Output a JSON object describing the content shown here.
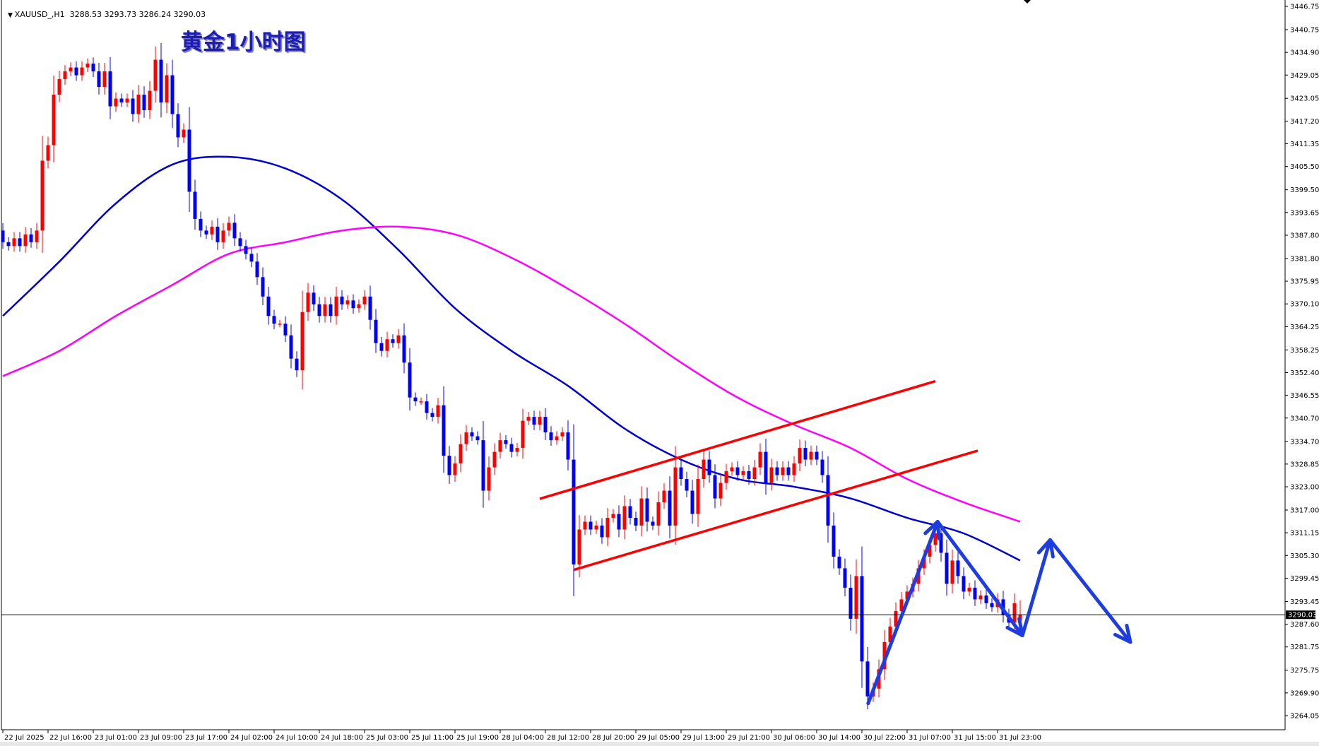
{
  "header": {
    "symbol_line": "XAUUSD_,H1  3288.53 3293.73 3286.24 3290.03",
    "chart_title": "黄金1小时图"
  },
  "chart_data": {
    "type": "candlestick",
    "symbol": "XAUUSD_",
    "timeframe": "H1",
    "last_bar": {
      "open": 3288.53,
      "high": 3293.73,
      "low": 3286.24,
      "close": 3290.03
    },
    "current_price": 3290.03,
    "colors": {
      "up": "#ff0000",
      "down": "#0000ff",
      "ma_fast": "#0000cc",
      "ma_slow": "#ff00ff",
      "channel": "#ff0000",
      "arrows": "#1d3de0",
      "price_line": "#000000"
    },
    "ylim": [
      3264.05,
      3446.75
    ],
    "y_ticks": [
      "3446.75",
      "3440.75",
      "3434.90",
      "3429.05",
      "3423.05",
      "3417.20",
      "3411.35",
      "3405.50",
      "3399.50",
      "3393.65",
      "3387.80",
      "3381.80",
      "3375.95",
      "3370.10",
      "3364.25",
      "3358.25",
      "3352.40",
      "3346.55",
      "3340.70",
      "3334.70",
      "3328.85",
      "3323.00",
      "3317.00",
      "3311.15",
      "3305.30",
      "3299.45",
      "3293.45",
      "3287.60",
      "3281.75",
      "3275.75",
      "3269.90",
      "3264.05"
    ],
    "x_ticks": [
      "22 Jul 2025",
      "22 Jul 16:00",
      "23 Jul 01:00",
      "23 Jul 09:00",
      "23 Jul 17:00",
      "24 Jul 02:00",
      "24 Jul 10:00",
      "24 Jul 18:00",
      "25 Jul 03:00",
      "25 Jul 11:00",
      "25 Jul 19:00",
      "28 Jul 04:00",
      "28 Jul 12:00",
      "28 Jul 20:00",
      "29 Jul 05:00",
      "29 Jul 13:00",
      "29 Jul 21:00",
      "30 Jul 06:00",
      "30 Jul 14:00",
      "30 Jul 22:00",
      "31 Jul 07:00",
      "31 Jul 15:00",
      "31 Jul 23:00"
    ],
    "first_open": 3389,
    "closes": [
      3386,
      3385,
      3387,
      3385,
      3388,
      3386,
      3389,
      3407,
      3411,
      3424,
      3428,
      3430,
      3431,
      3429,
      3431,
      3432,
      3430,
      3426,
      3430,
      3421,
      3423,
      3422,
      3423,
      3419,
      3424,
      3420,
      3425,
      3433,
      3422,
      3429,
      3419,
      3413,
      3415,
      3399,
      3392,
      3389,
      3388,
      3390,
      3386,
      3389,
      3391,
      3387,
      3385,
      3383,
      3381,
      3377,
      3372,
      3367,
      3365,
      3365,
      3362,
      3356,
      3353,
      3368,
      3373,
      3370,
      3367,
      3370,
      3367,
      3372,
      3370,
      3371,
      3369,
      3370,
      3372,
      3366,
      3360,
      3358,
      3361,
      3360,
      3362,
      3355,
      3346,
      3345,
      3345,
      3342,
      3341,
      3344,
      3331,
      3326,
      3329,
      3334,
      3337,
      3336,
      3335,
      3322,
      3328,
      3332,
      3335,
      3334,
      3332,
      3333,
      3340,
      3341,
      3339,
      3341,
      3337,
      3335,
      3336,
      3337,
      3330,
      3303,
      3312,
      3314,
      3312,
      3313,
      3310,
      3315,
      3316,
      3312,
      3318,
      3315,
      3313,
      3320,
      3314,
      3313,
      3319,
      3322,
      3313,
      3328,
      3325,
      3322,
      3316,
      3325,
      3330,
      3326,
      3320,
      3324,
      3327,
      3328,
      3326,
      3327,
      3325,
      3328,
      3332,
      3324,
      3328,
      3326,
      3328,
      3326,
      3329,
      3333,
      3330,
      3332,
      3330,
      3326,
      3313,
      3305,
      3302,
      3297,
      3289,
      3300,
      3278,
      3269,
      3271,
      3276,
      3283,
      3287,
      3291,
      3294,
      3296,
      3298,
      3302,
      3305,
      3308,
      3311,
      3306,
      3298,
      3304,
      3300,
      3296,
      3297,
      3294,
      3295,
      3293,
      3292,
      3294,
      3290,
      3288,
      3293,
      3290.03
    ],
    "ma_fast_every_10_bars": [
      3367,
      3381,
      3396,
      3406,
      3408,
      3405,
      3397,
      3384,
      3369,
      3358,
      3349,
      3338,
      3330,
      3325,
      3323,
      3320,
      3315,
      3311,
      3304
    ],
    "ma_slow_every_10_bars": [
      3351.5,
      3358,
      3367,
      3375,
      3383,
      3386,
      3389,
      3390,
      3388,
      3382,
      3374,
      3365,
      3355,
      3346,
      3339,
      3333,
      3325,
      3319,
      3314
    ],
    "channel_lines": [
      {
        "from": {
          "bar": 95,
          "price": 3319.9
        },
        "to": {
          "bar": 165,
          "price": 3350.2
        }
      },
      {
        "from": {
          "bar": 101,
          "price": 3301.6
        },
        "to": {
          "bar": 172.5,
          "price": 3332.3
        }
      }
    ],
    "forecast_arrows": [
      {
        "bar": 153.1,
        "price": 3267.2
      },
      {
        "bar": 165.4,
        "price": 3314.0
      },
      {
        "bar": 180.4,
        "price": 3284.7
      },
      {
        "bar": 185.3,
        "price": 3309.3
      },
      {
        "bar": 199.5,
        "price": 3283.0
      }
    ]
  }
}
